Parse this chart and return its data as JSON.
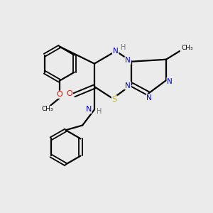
{
  "background_color": "#ebebeb",
  "bond_color": "#000000",
  "atom_colors": {
    "N": "#0000cc",
    "O": "#ff0000",
    "S": "#bbbb00",
    "C": "#000000",
    "H": "#777777"
  },
  "figsize": [
    3.0,
    3.0
  ],
  "dpi": 100
}
